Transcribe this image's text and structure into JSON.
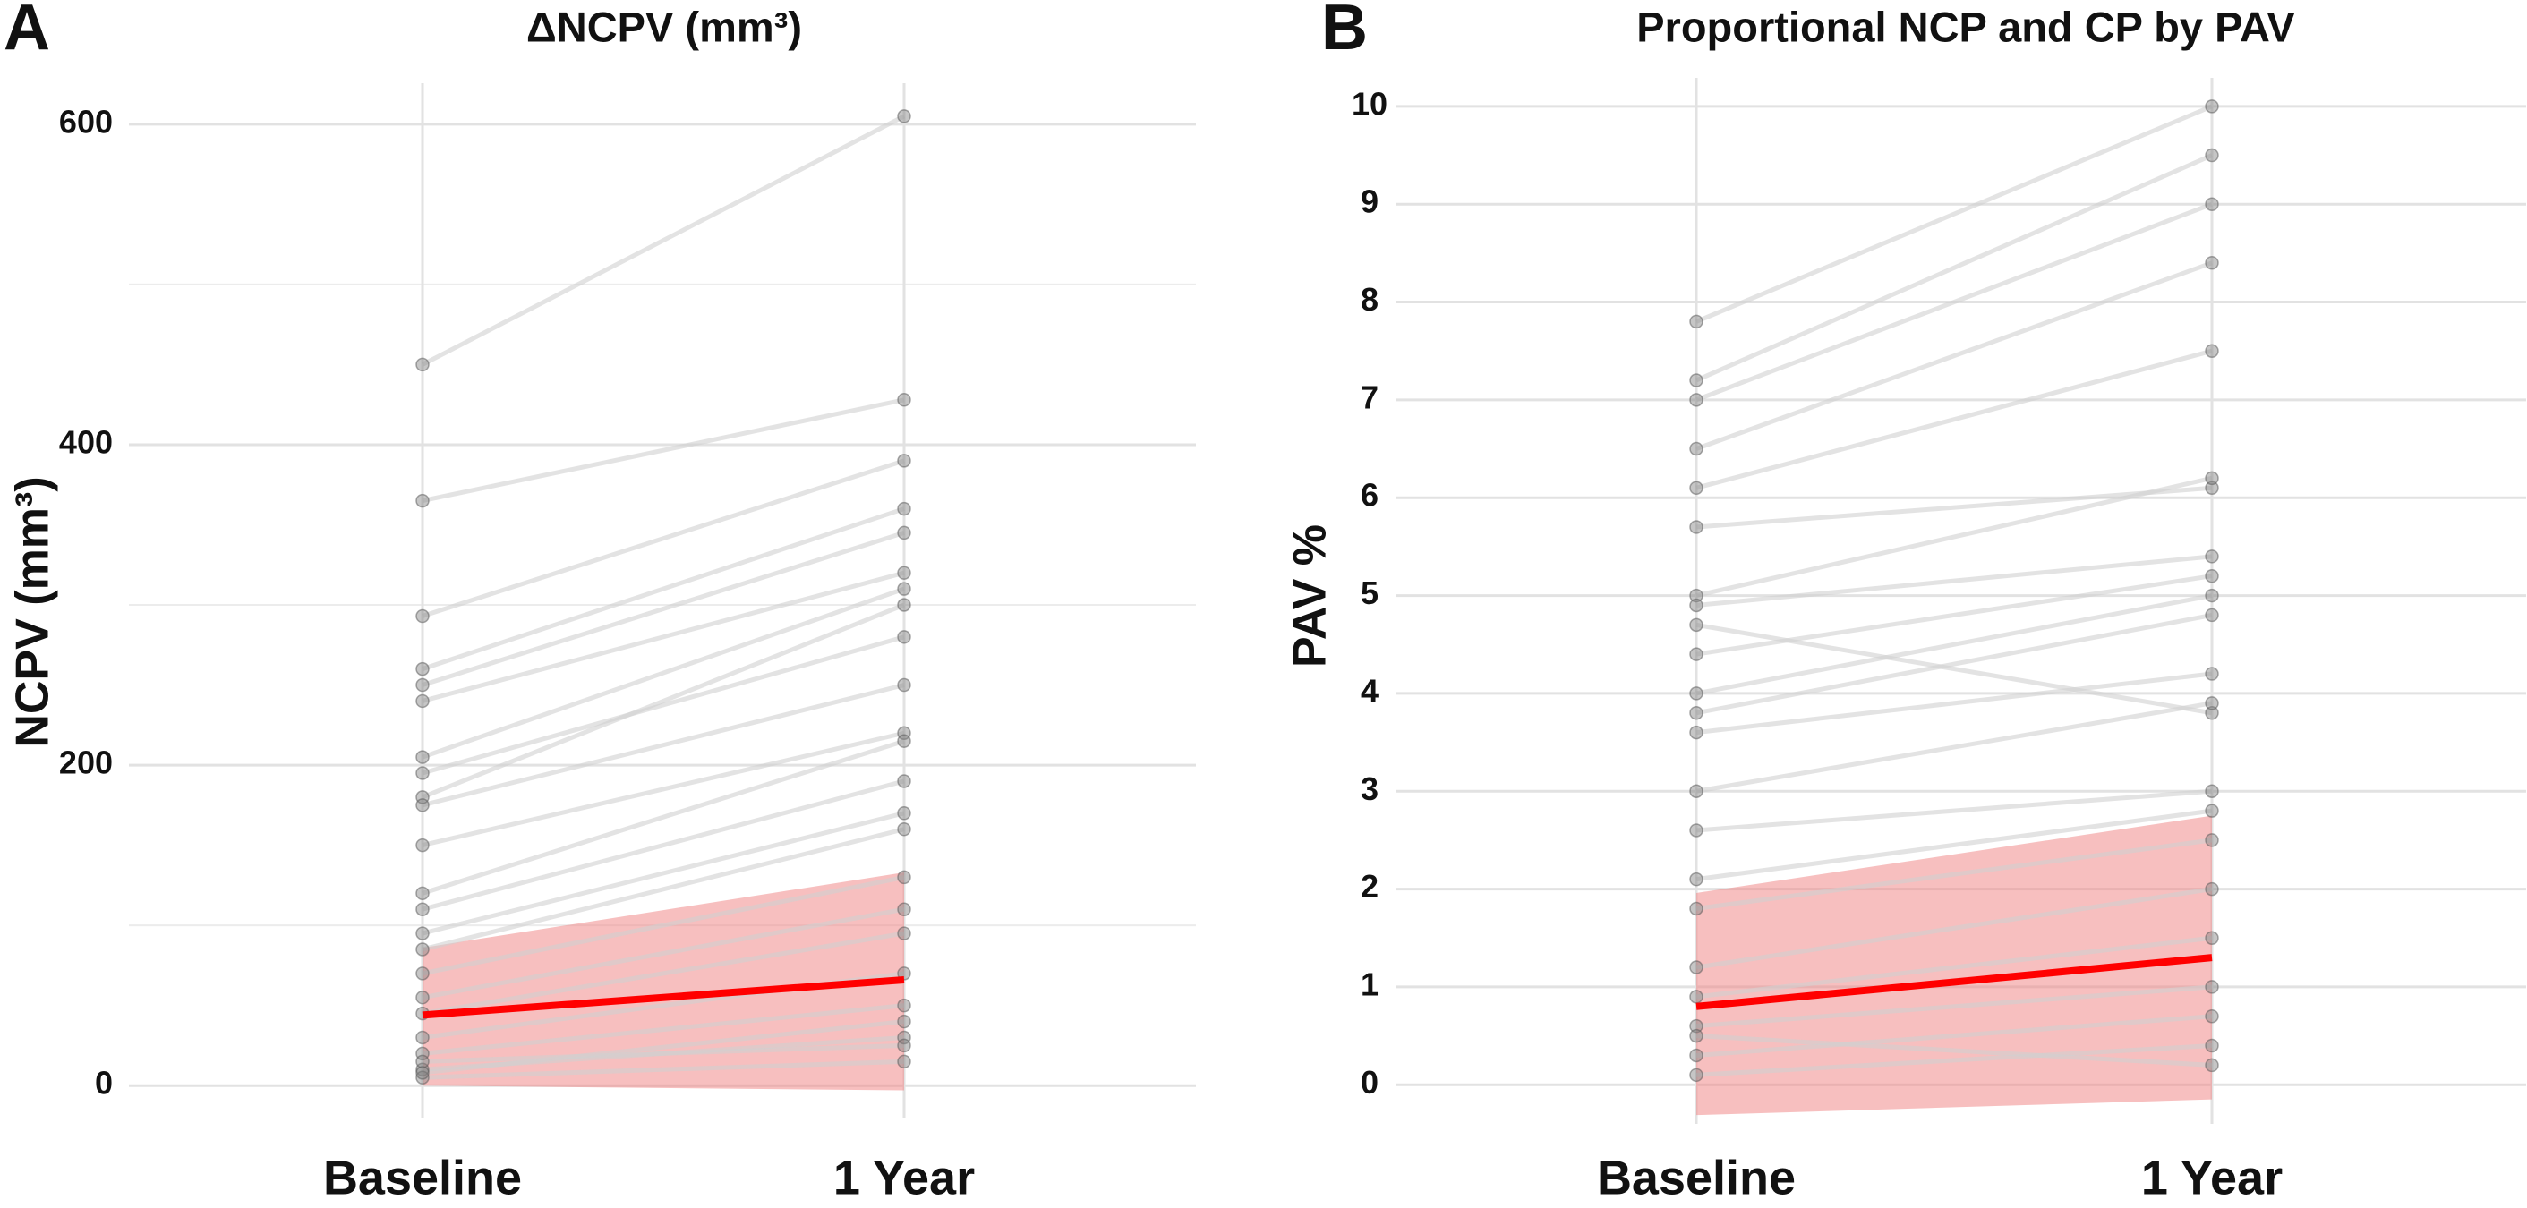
{
  "chart_data": [
    {
      "type": "line",
      "panel_label": "A",
      "title": "ΔNCPV (mm³)",
      "y_label": "NCPV (mm³)",
      "categories": [
        "Baseline",
        "1 Year"
      ],
      "ylim": [
        -20,
        620
      ],
      "yticks": [
        0,
        200,
        400,
        600
      ],
      "minor_grid": [
        100,
        300,
        500
      ],
      "grid": true,
      "line_color": "#d0d0d0",
      "point_color": "#808080",
      "series": [
        {
          "values": [
            450,
            605
          ]
        },
        {
          "values": [
            365,
            428
          ]
        },
        {
          "values": [
            293,
            390
          ]
        },
        {
          "values": [
            260,
            360
          ]
        },
        {
          "values": [
            250,
            345
          ]
        },
        {
          "values": [
            240,
            320
          ]
        },
        {
          "values": [
            205,
            310
          ]
        },
        {
          "values": [
            195,
            280
          ]
        },
        {
          "values": [
            180,
            300
          ]
        },
        {
          "values": [
            175,
            250
          ]
        },
        {
          "values": [
            150,
            220
          ]
        },
        {
          "values": [
            120,
            215
          ]
        },
        {
          "values": [
            110,
            190
          ]
        },
        {
          "values": [
            95,
            170
          ]
        },
        {
          "values": [
            85,
            160
          ]
        },
        {
          "values": [
            70,
            130
          ]
        },
        {
          "values": [
            55,
            110
          ]
        },
        {
          "values": [
            45,
            95
          ]
        },
        {
          "values": [
            30,
            70
          ]
        },
        {
          "values": [
            20,
            50
          ]
        },
        {
          "values": [
            10,
            30
          ]
        },
        {
          "values": [
            5,
            15
          ]
        },
        {
          "values": [
            8,
            40
          ]
        },
        {
          "values": [
            15,
            25
          ]
        }
      ],
      "mean": {
        "color": "#ff0000",
        "values": [
          44,
          66
        ]
      },
      "ribbon": {
        "color": "#f08080",
        "lower": [
          0,
          -3
        ],
        "upper": [
          86,
          133
        ]
      }
    },
    {
      "type": "line",
      "panel_label": "B",
      "title": "Proportional NCP and CP by PAV",
      "y_label": "PAV  %",
      "categories": [
        "Baseline",
        "1 Year"
      ],
      "ylim": [
        -0.4,
        10.2
      ],
      "yticks": [
        0,
        1,
        2,
        3,
        4,
        5,
        6,
        7,
        8,
        9,
        10
      ],
      "grid": true,
      "line_color": "#d0d0d0",
      "point_color": "#808080",
      "series": [
        {
          "values": [
            7.8,
            10
          ]
        },
        {
          "values": [
            7.2,
            9.5
          ]
        },
        {
          "values": [
            7.0,
            9.0
          ]
        },
        {
          "values": [
            6.5,
            8.4
          ]
        },
        {
          "values": [
            6.1,
            7.5
          ]
        },
        {
          "values": [
            5.7,
            6.1
          ]
        },
        {
          "values": [
            5.0,
            6.2
          ]
        },
        {
          "values": [
            4.9,
            5.4
          ]
        },
        {
          "values": [
            4.7,
            3.8
          ]
        },
        {
          "values": [
            4.4,
            5.2
          ]
        },
        {
          "values": [
            4.0,
            5.0
          ]
        },
        {
          "values": [
            3.8,
            4.8
          ]
        },
        {
          "values": [
            3.6,
            4.2
          ]
        },
        {
          "values": [
            3.0,
            3.9
          ]
        },
        {
          "values": [
            2.6,
            3.0
          ]
        },
        {
          "values": [
            2.1,
            2.8
          ]
        },
        {
          "values": [
            1.8,
            2.5
          ]
        },
        {
          "values": [
            1.2,
            2.0
          ]
        },
        {
          "values": [
            0.9,
            1.5
          ]
        },
        {
          "values": [
            0.6,
            1.0
          ]
        },
        {
          "values": [
            0.3,
            0.7
          ]
        },
        {
          "values": [
            0.1,
            0.4
          ]
        },
        {
          "values": [
            0.5,
            0.2
          ]
        }
      ],
      "mean": {
        "color": "#ff0000",
        "values": [
          0.8,
          1.3
        ]
      },
      "ribbon": {
        "color": "#f08080",
        "lower": [
          -0.31,
          -0.15
        ],
        "upper": [
          1.96,
          2.75
        ]
      }
    }
  ]
}
